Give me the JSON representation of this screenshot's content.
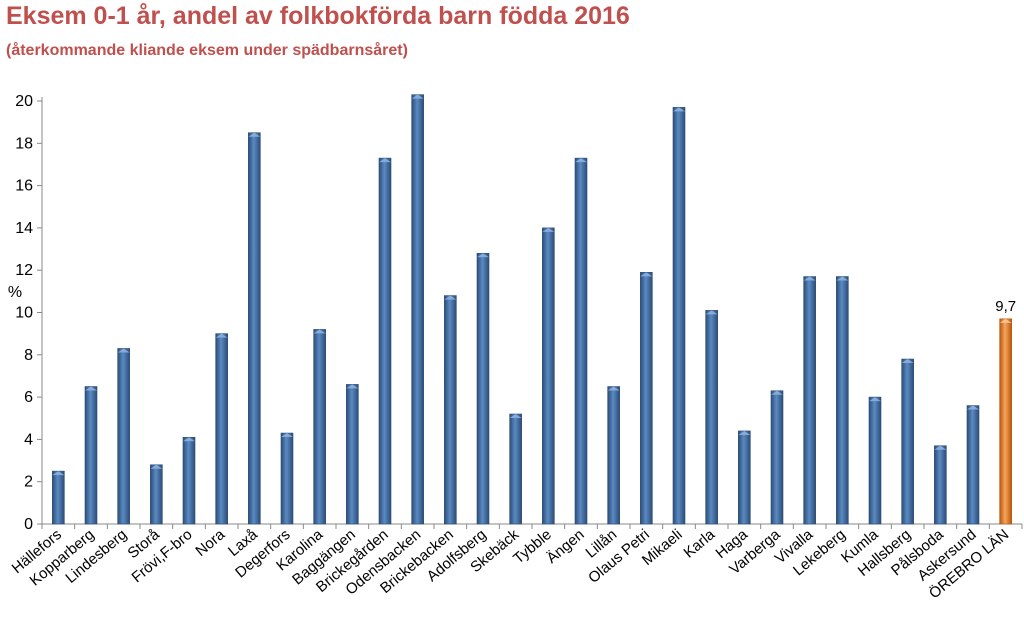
{
  "chart_data": {
    "type": "bar",
    "title": "Eksem 0-1 år, andel av folkbokförda barn födda 2016",
    "subtitle": "(återkommande kliande eksem under spädbarnsåret)",
    "ylabel": "%",
    "ylim": [
      0,
      20
    ],
    "yticks": [
      "0",
      "2",
      "4",
      "6",
      "8",
      "10",
      "12",
      "14",
      "16",
      "18",
      "20"
    ],
    "grid": false,
    "legend": "none",
    "categories": [
      "Hällefors",
      "Kopparberg",
      "Lindesberg",
      "Storå",
      "Frövi,F-bro",
      "Nora",
      "Laxå",
      "Degerfors",
      "Karolina",
      "Baggängen",
      "Brickegården",
      "Odensbacken",
      "Brickebacken",
      "Adolfsberg",
      "Skebäck",
      "Tybble",
      "Ängen",
      "Lillån",
      "Olaus Petri",
      "Mikaeli",
      "Karla",
      "Haga",
      "Varberga",
      "Vivalla",
      "Lekeberg",
      "Kumla",
      "Hallsberg",
      "Pålsboda",
      "Askersund",
      "ÖREBRO LÄN"
    ],
    "values": [
      2.5,
      6.5,
      8.3,
      2.8,
      4.1,
      9.0,
      18.5,
      4.3,
      9.2,
      6.6,
      17.3,
      20.3,
      10.8,
      12.8,
      5.2,
      14.0,
      17.3,
      6.5,
      11.9,
      19.7,
      10.1,
      4.4,
      6.3,
      11.7,
      11.7,
      6.0,
      7.8,
      3.7,
      5.6,
      9.7
    ],
    "highlight_index": 29,
    "data_labels": [
      {
        "index": 29,
        "text": "9,7"
      }
    ],
    "colors": {
      "bar": "#4f81bd",
      "highlight": "#f79646",
      "title": "#c0504d"
    }
  }
}
